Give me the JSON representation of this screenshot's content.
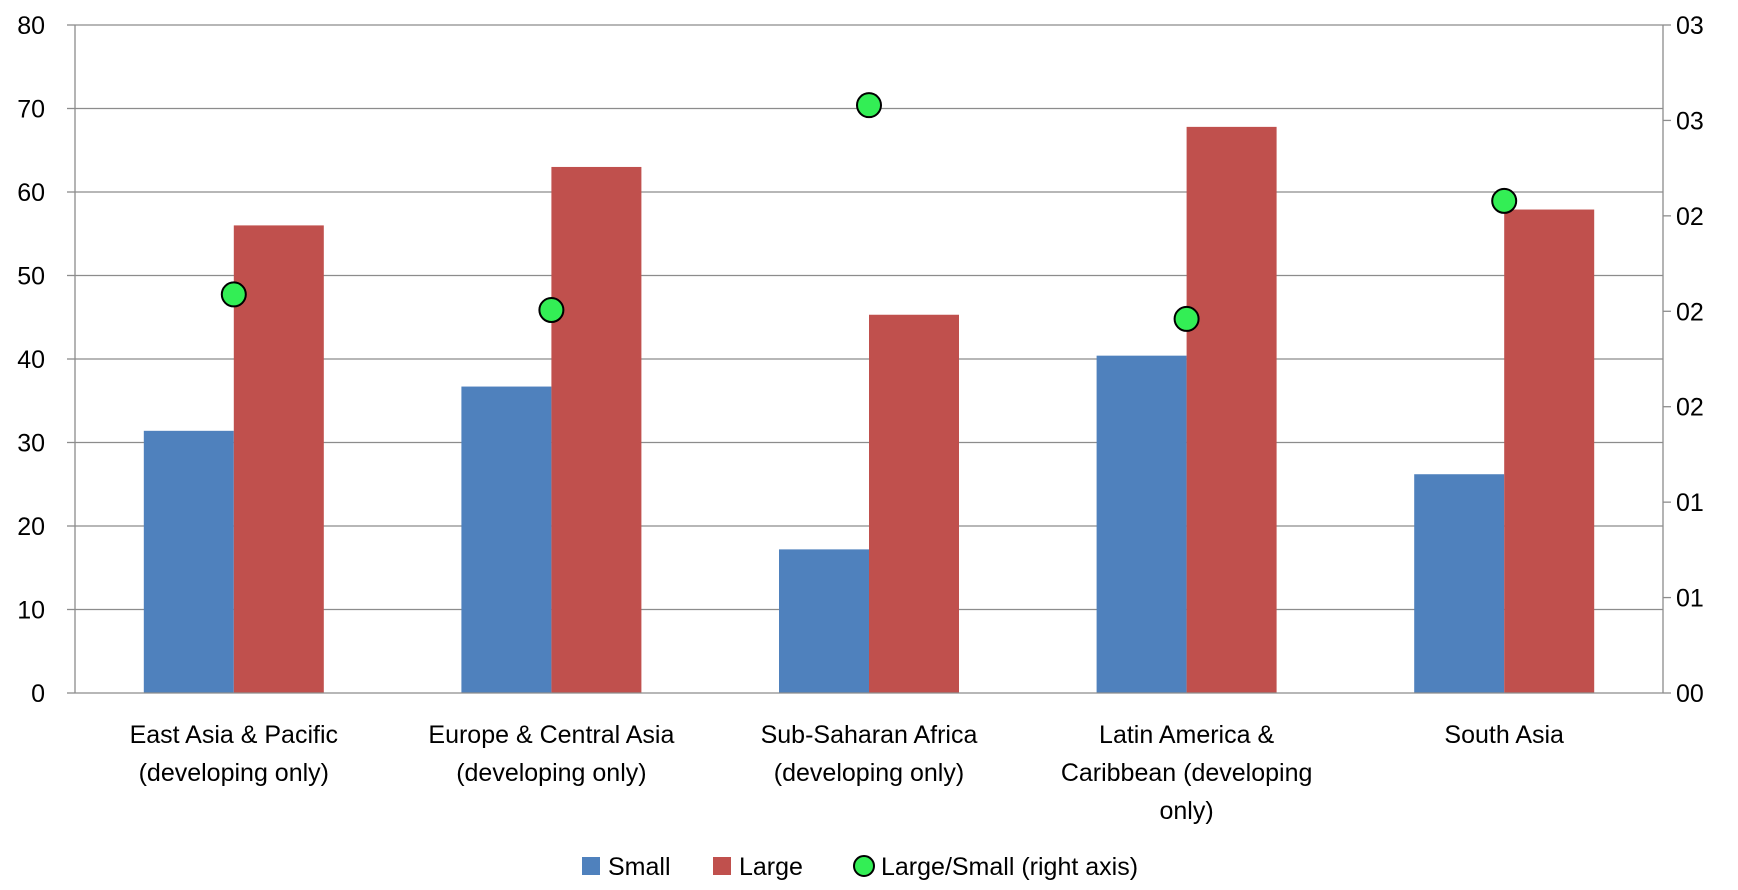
{
  "chart_data": {
    "type": "bar",
    "categories": [
      [
        "East Asia & Pacific",
        "(developing only)"
      ],
      [
        "Europe & Central Asia",
        "(developing only)"
      ],
      [
        "Sub-Saharan Africa",
        "(developing only)"
      ],
      [
        "Latin America &",
        "Caribbean (developing",
        "only)"
      ],
      [
        "South Asia"
      ]
    ],
    "series": [
      {
        "name": "Small",
        "kind": "bar",
        "axis": "left",
        "color": "#4F81BD",
        "values": [
          31.4,
          36.7,
          17.2,
          40.4,
          26.2
        ]
      },
      {
        "name": "Large",
        "kind": "bar",
        "axis": "left",
        "color": "#C0504D",
        "values": [
          56.0,
          63.0,
          45.3,
          67.8,
          57.9
        ]
      },
      {
        "name": "Large/Small (right axis)",
        "kind": "point",
        "axis": "right",
        "color": "#33EE55",
        "values": [
          1.79,
          1.72,
          2.64,
          1.68,
          2.21
        ]
      }
    ],
    "left_axis": {
      "ylim": [
        0,
        80
      ],
      "ticks": [
        "0",
        "10",
        "20",
        "30",
        "40",
        "50",
        "60",
        "70",
        "80"
      ]
    },
    "right_axis": {
      "ylim": [
        0,
        3
      ],
      "ticks": [
        "00",
        "01",
        "01",
        "02",
        "02",
        "02",
        "03",
        "03"
      ]
    },
    "grid": true,
    "legend": "bottom"
  }
}
